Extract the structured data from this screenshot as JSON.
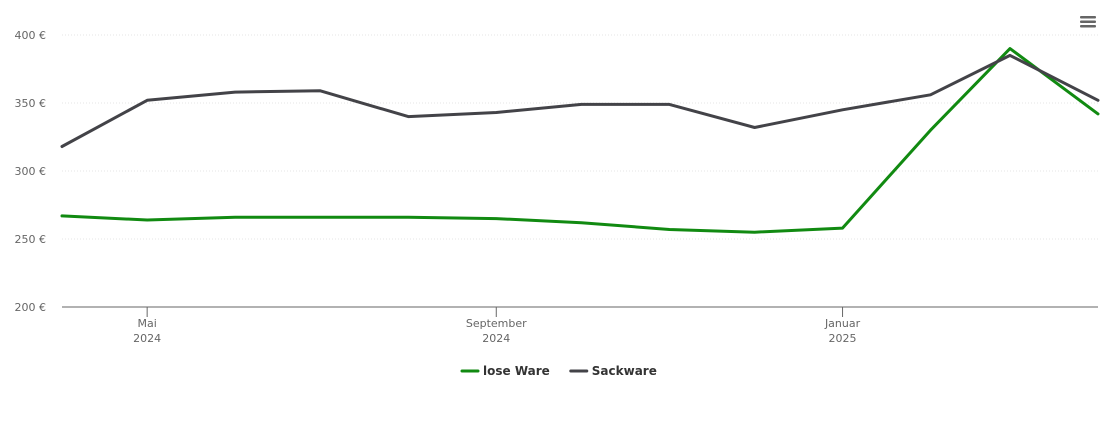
{
  "chart_data": {
    "type": "line",
    "x": [
      "2024-04",
      "2024-05",
      "2024-06",
      "2024-07",
      "2024-08",
      "2024-09",
      "2024-10",
      "2024-11",
      "2024-12",
      "2025-01",
      "2025-02",
      "2025-03",
      "2025-04"
    ],
    "series": [
      {
        "name": "lose Ware",
        "color": "#118a11",
        "values": [
          267,
          264,
          266,
          266,
          266,
          265,
          262,
          257,
          255,
          258,
          330,
          390,
          342
        ]
      },
      {
        "name": "Sackware",
        "color": "#434348",
        "values": [
          318,
          352,
          358,
          359,
          340,
          343,
          349,
          349,
          332,
          345,
          356,
          385,
          352
        ]
      }
    ],
    "xlim": [
      "2024-04",
      "2025-04"
    ],
    "xticks": [
      {
        "value": "2024-05",
        "label": "Mai\n2024"
      },
      {
        "value": "2024-09",
        "label": "September\n2024"
      },
      {
        "value": "2025-01",
        "label": "Januar\n2025"
      }
    ],
    "ylim": [
      200,
      400
    ],
    "yticks": [
      {
        "value": 200,
        "label": "200 €"
      },
      {
        "value": 250,
        "label": "250 €"
      },
      {
        "value": 300,
        "label": "300 €"
      },
      {
        "value": 350,
        "label": "350 €"
      },
      {
        "value": 400,
        "label": "400 €"
      }
    ],
    "grid": true,
    "legend": "bottom"
  }
}
